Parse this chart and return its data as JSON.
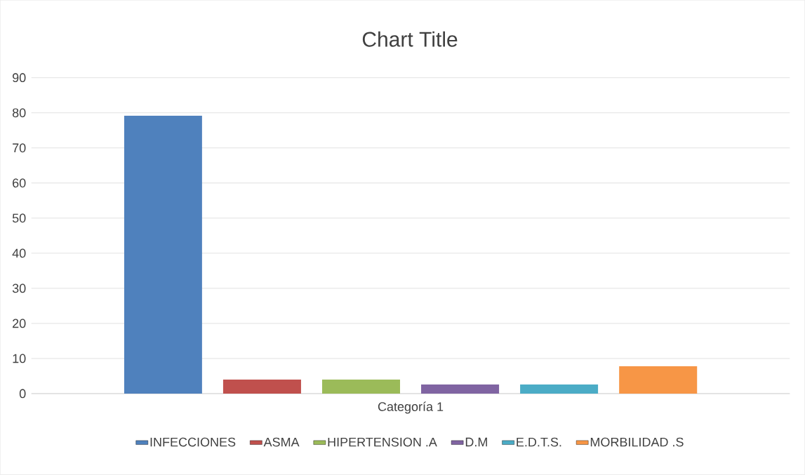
{
  "chart_data": {
    "type": "bar",
    "title": "Chart Title",
    "categories": [
      "Categoría 1"
    ],
    "series": [
      {
        "name": "INFECCIONES",
        "color": "#4f81bd",
        "values": [
          79.2
        ]
      },
      {
        "name": "ASMA",
        "color": "#c0504d",
        "values": [
          4
        ]
      },
      {
        "name": "HIPERTENSION .A",
        "color": "#9bbb59",
        "values": [
          4
        ]
      },
      {
        "name": "D.M",
        "color": "#8064a2",
        "values": [
          2.6
        ]
      },
      {
        "name": "E.D.T.S.",
        "color": "#4bacc6",
        "values": [
          2.6
        ]
      },
      {
        "name": "MORBILIDAD .S",
        "color": "#f79646",
        "values": [
          7.8
        ]
      }
    ],
    "ylim": [
      0,
      90
    ],
    "yticks": [
      0,
      10,
      20,
      30,
      40,
      50,
      60,
      70,
      80,
      90
    ],
    "grid": "y",
    "legend": "bottom"
  }
}
